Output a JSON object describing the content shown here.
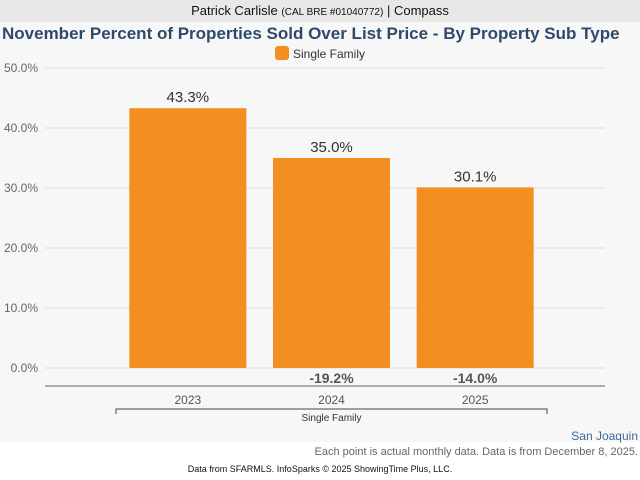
{
  "header": {
    "agent_name": "Patrick Carlisle",
    "license": "(CAL BRE #01040772)",
    "separator": "|",
    "brokerage": "Compass"
  },
  "footer": {
    "region": "San Joaquin",
    "note": "Each point is actual monthly data. Data is from December 8, 2025.",
    "credit": "Data from SFARMLS. InfoSparks © 2025 ShowingTime Plus, LLC."
  },
  "colors": {
    "bar": "#f28f20",
    "title": "#2e4a6b",
    "gridline": "#dddddd",
    "axis": "#666666",
    "change_label": "#555555"
  },
  "chart_data": {
    "type": "bar",
    "title": "November Percent of Properties Sold Over List Price - By Property Sub Type",
    "legend": [
      {
        "name": "Single Family",
        "color": "#f28f20"
      }
    ],
    "legend_position": "top-center",
    "categories": [
      "2023",
      "2024",
      "2025"
    ],
    "group_label": "Single Family",
    "series": [
      {
        "name": "Single Family",
        "values": [
          43.3,
          35.0,
          30.1
        ]
      }
    ],
    "value_labels": [
      "43.3%",
      "35.0%",
      "30.1%"
    ],
    "change_labels": [
      "",
      "-19.2%",
      "-14.0%"
    ],
    "ylim": [
      0,
      50
    ],
    "yticks": [
      0,
      10,
      20,
      30,
      40,
      50
    ],
    "ytick_labels": [
      "0.0%",
      "10.0%",
      "20.0%",
      "30.0%",
      "40.0%",
      "50.0%"
    ],
    "grid": true,
    "xlabel": "",
    "ylabel": ""
  }
}
